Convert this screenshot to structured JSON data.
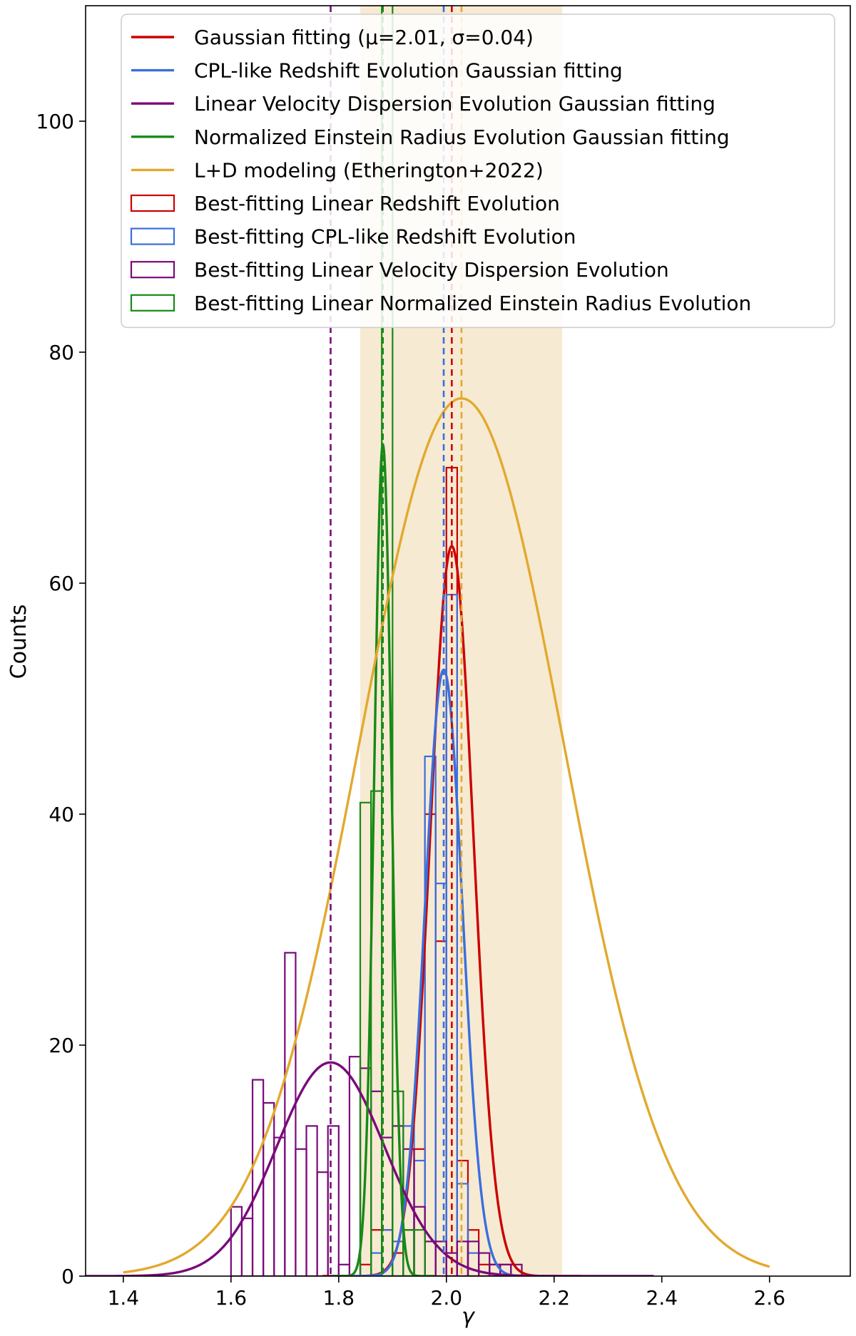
{
  "chart_data": {
    "type": "histogram",
    "xlabel": "γ",
    "ylabel": "Counts",
    "xlim": [
      1.33,
      2.75
    ],
    "ylim": [
      0,
      110
    ],
    "xticks": [
      "1.4",
      "1.6",
      "1.8",
      "2.0",
      "2.2",
      "2.4",
      "2.6"
    ],
    "yticks": [
      "0",
      "20",
      "40",
      "60",
      "80",
      "100"
    ],
    "grid": false,
    "legend_position": "top",
    "shaded_band": {
      "x_range": [
        1.84,
        2.215
      ],
      "color": "#f7ead3"
    },
    "gaussian_curves": [
      {
        "name": "Gaussian fitting (μ=2.01, σ=0.04)",
        "color": "#cc0000",
        "mu": 2.01,
        "sigma": 0.04,
        "peak": 63.2
      },
      {
        "name": "CPL-like Redshift Evolution Gaussian fitting",
        "color": "#3a6fdc",
        "mu": 1.995,
        "sigma": 0.035,
        "peak": 52.5
      },
      {
        "name": "Linear Velocity Dispersion Evolution Gaussian fitting",
        "color": "#7a0a7a",
        "mu": 1.785,
        "sigma": 0.1,
        "peak": 18.5
      },
      {
        "name": "Normalized Einstein Radius Evolution Gaussian fitting",
        "color": "#168a16",
        "mu": 1.882,
        "sigma": 0.016,
        "peak": 72
      },
      {
        "name": "L+D modeling (Etherington+2022)",
        "color": "#e2a92e",
        "mu": 2.028,
        "sigma": 0.19,
        "peak": 76,
        "x_range": [
          1.4,
          2.6
        ]
      }
    ],
    "histograms": [
      {
        "name": "Best-fitting Linear Redshift Evolution",
        "color": "#cc0000",
        "edges": [
          1.84,
          1.86,
          1.88,
          1.9,
          1.92,
          1.94,
          1.96,
          1.98,
          2.0,
          2.02,
          2.04,
          2.06,
          2.08,
          2.1,
          2.12,
          2.14
        ],
        "counts": [
          1,
          4,
          4,
          2,
          4,
          11,
          40,
          29,
          70,
          10,
          4,
          1,
          1,
          1,
          0
        ]
      },
      {
        "name": "Best-fitting CPL-like Redshift Evolution",
        "color": "#3a6fdc",
        "edges": [
          1.84,
          1.86,
          1.88,
          1.9,
          1.92,
          1.94,
          1.96,
          1.98,
          2.0,
          2.02,
          2.04,
          2.06,
          2.08,
          2.1,
          2.12
        ],
        "counts": [
          0,
          2,
          4,
          3,
          13,
          10,
          45,
          34,
          59,
          8,
          2,
          0,
          0,
          0
        ]
      },
      {
        "name": "Best-fitting Linear Velocity Dispersion Evolution",
        "color": "#7a0a7a",
        "edges": [
          1.6,
          1.62,
          1.64,
          1.66,
          1.68,
          1.7,
          1.72,
          1.74,
          1.76,
          1.78,
          1.8,
          1.82,
          1.84,
          1.86,
          1.88,
          1.9,
          1.92,
          1.94,
          1.96,
          1.98,
          2.0,
          2.02,
          2.04,
          2.06,
          2.08,
          2.1,
          2.12,
          2.14,
          2.16
        ],
        "counts": [
          6,
          5,
          17,
          15,
          12,
          28,
          11,
          13,
          9,
          13,
          1,
          19,
          18,
          16,
          12,
          13,
          11,
          6,
          3,
          3,
          2,
          3,
          3,
          2,
          1,
          1,
          1,
          0
        ]
      },
      {
        "name": "Best-fitting Linear Normalized Einstein Radius Evolution",
        "color": "#168a16",
        "edges": [
          1.84,
          1.86,
          1.88,
          1.9,
          1.92,
          1.94,
          1.96
        ],
        "counts": [
          41,
          42,
          125,
          16,
          4,
          4
        ]
      }
    ],
    "vertical_dashed_lines": [
      {
        "x": 1.785,
        "color": "#7a0a7a"
      },
      {
        "x": 1.882,
        "color": "#168a16"
      },
      {
        "x": 1.995,
        "color": "#3a6fdc"
      },
      {
        "x": 2.01,
        "color": "#cc0000"
      },
      {
        "x": 2.028,
        "color": "#e2a92e"
      }
    ]
  }
}
